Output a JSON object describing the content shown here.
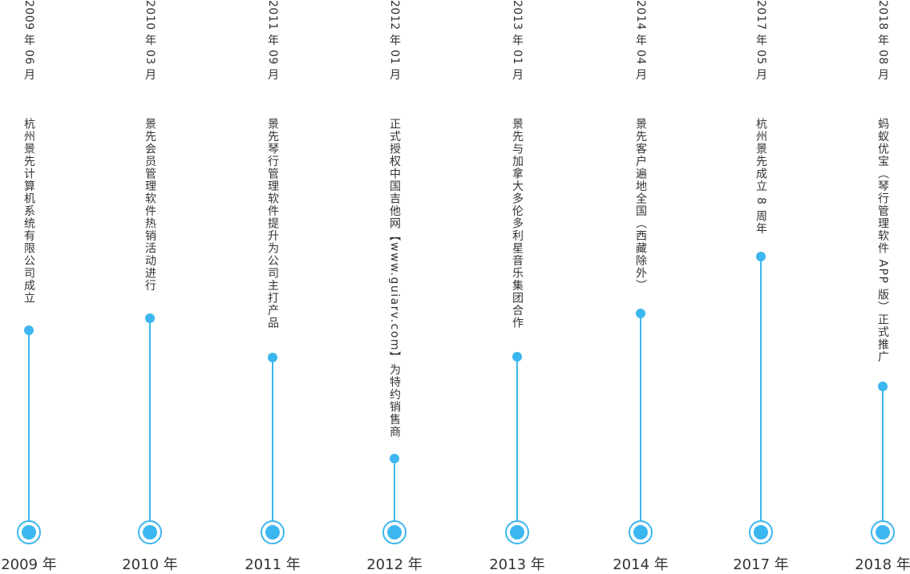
{
  "accent_color": "#3cb6ee",
  "milestones": [
    {
      "date": "2009 年 06 月",
      "event": "杭州景先计算机系统有限公司成立",
      "year": "2009 年"
    },
    {
      "date": "2010 年 03 月",
      "event": "景先会员管理软件热销活动进行",
      "year": "2010 年"
    },
    {
      "date": "2011 年 09 月",
      "event": "景先琴行管理软件提升为公司主打产品",
      "year": "2011 年"
    },
    {
      "date": "2012 年 01 月",
      "event": "正式授权中国吉他网【www.guiarv.com】为特约销售商",
      "year": "2012 年"
    },
    {
      "date": "2013 年 01 月",
      "event": "景先与加拿大多伦多利星音乐集团合作",
      "year": "2013 年"
    },
    {
      "date": "2014 年 04 月",
      "event": "景先客户遍地全国（西藏除外）",
      "year": "2014 年"
    },
    {
      "date": "2017 年 05 月",
      "event": "杭州景先成立 8 周年",
      "year": "2017 年"
    },
    {
      "date": "2018 年 08 月",
      "event": "蚂蚁优宝（琴行管理软件 APP 版）正式推广",
      "year": "2018 年"
    }
  ]
}
